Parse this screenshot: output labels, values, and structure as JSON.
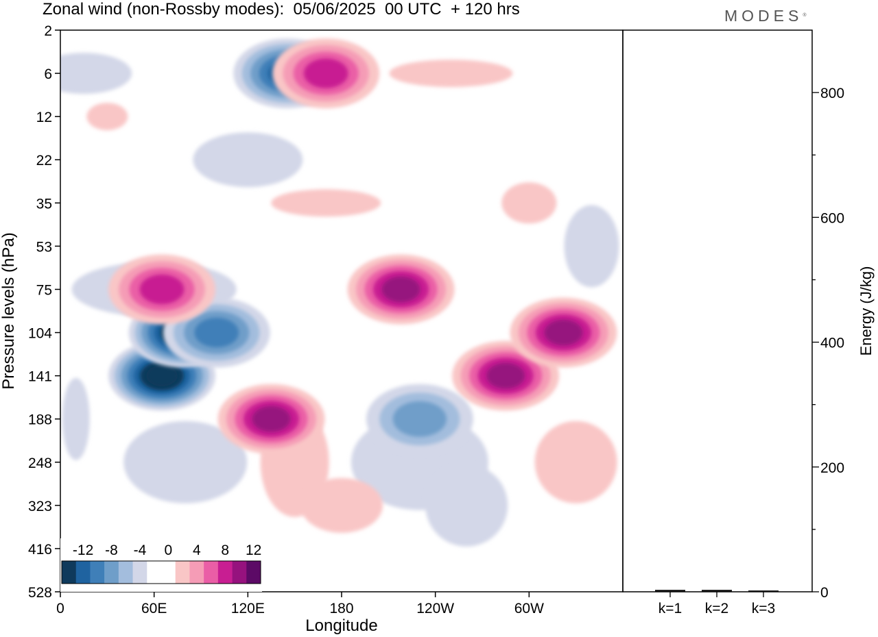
{
  "title": "Zonal wind (non-Rossby modes):  05/06/2025  00 UTC  + 120 hrs",
  "logo": "MODES",
  "colors": {
    "neg": [
      "#0f3a5c",
      "#1f63a0",
      "#3f7fb8",
      "#6f9ec9",
      "#a3bddd",
      "#d3d7e8"
    ],
    "zero": "#ffffff",
    "pos": [
      "#f9c6c6",
      "#f59cb6",
      "#ea5ea6",
      "#c81e92",
      "#96127e",
      "#5c0a66"
    ]
  },
  "chart_data": [
    {
      "type": "heatmap",
      "title": "Zonal wind (non-Rossby modes):  05/06/2025  00 UTC  + 120 hrs",
      "xlabel": "Longitude",
      "ylabel": "Pressure levels (hPa)",
      "x_ticks": [
        "0",
        "60E",
        "120E",
        "180",
        "120W",
        "60W"
      ],
      "x_tick_values": [
        0,
        60,
        120,
        180,
        240,
        300
      ],
      "x_range": [
        0,
        360
      ],
      "y_ticks": [
        "2",
        "6",
        "12",
        "22",
        "35",
        "53",
        "75",
        "104",
        "141",
        "188",
        "248",
        "323",
        "416",
        "528"
      ],
      "colorbar": {
        "labels": [
          "-12",
          "-8",
          "-4",
          "0",
          "4",
          "8",
          "12"
        ],
        "levels": [
          -14,
          -12,
          -10,
          -8,
          -6,
          -4,
          -2,
          2,
          4,
          6,
          8,
          10,
          12,
          14
        ]
      },
      "features": [
        {
          "lon": 65,
          "level": "141",
          "value": -14
        },
        {
          "lon": 78,
          "level": "104",
          "value": -14
        },
        {
          "lon": 100,
          "level": "104",
          "value": -8
        },
        {
          "lon": 65,
          "level": "75",
          "value": 8
        },
        {
          "lon": 135,
          "level": "188",
          "value": 10
        },
        {
          "lon": 218,
          "level": "75",
          "value": 10
        },
        {
          "lon": 285,
          "level": "141",
          "value": 10
        },
        {
          "lon": 322,
          "level": "104",
          "value": 10
        },
        {
          "lon": 145,
          "level": "6",
          "value": -10
        },
        {
          "lon": 170,
          "level": "6",
          "value": 8
        },
        {
          "lon": 230,
          "level": "188",
          "value": -6
        }
      ]
    },
    {
      "type": "bar",
      "ylabel": "Energy (J/kg)",
      "categories": [
        "k=1",
        "k=2",
        "k=3"
      ],
      "values": [
        2,
        2,
        1
      ],
      "ylim": [
        0,
        900
      ],
      "y_ticks": [
        "0",
        "200",
        "400",
        "600",
        "800"
      ]
    }
  ]
}
